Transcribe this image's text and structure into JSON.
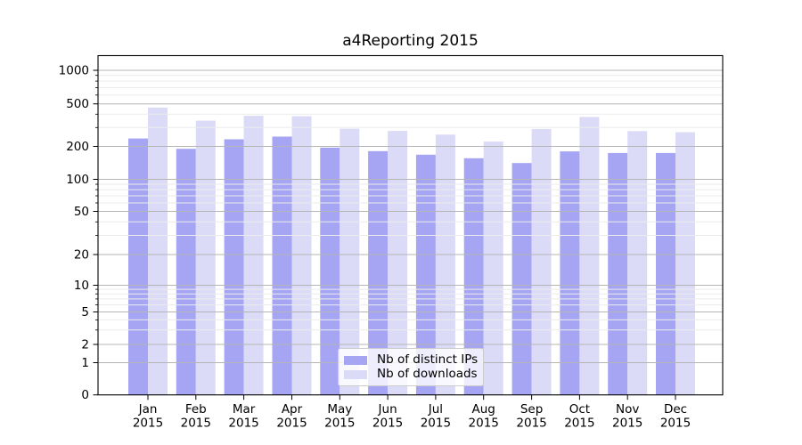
{
  "figure": {
    "title": "a4Reporting 2015"
  },
  "chart_data": {
    "type": "bar",
    "title": "a4Reporting 2015",
    "categories": [
      "Jan",
      "Feb",
      "Mar",
      "Apr",
      "May",
      "Jun",
      "Jul",
      "Aug",
      "Sep",
      "Oct",
      "Nov",
      "Dec"
    ],
    "year_label": "2015",
    "series": [
      {
        "name": "Nb of distinct IPs",
        "color": "#a5a5f3",
        "values": [
          237,
          190,
          233,
          247,
          195,
          181,
          168,
          156,
          141,
          180,
          174,
          174
        ]
      },
      {
        "name": "Nb of downloads",
        "color": "#dbdbf8",
        "values": [
          461,
          348,
          387,
          383,
          293,
          279,
          258,
          222,
          291,
          377,
          278,
          272
        ]
      }
    ],
    "yscale": "symlog",
    "yticks": [
      0,
      1,
      2,
      5,
      10,
      20,
      50,
      100,
      200,
      500,
      1000
    ],
    "minor_gridlines": [
      3,
      4,
      6,
      7,
      8,
      9,
      30,
      40,
      60,
      70,
      80,
      90,
      300,
      400,
      600,
      700,
      800,
      900
    ],
    "ylim": [
      0,
      1100
    ],
    "grid": true,
    "legend_position": "lower center"
  }
}
